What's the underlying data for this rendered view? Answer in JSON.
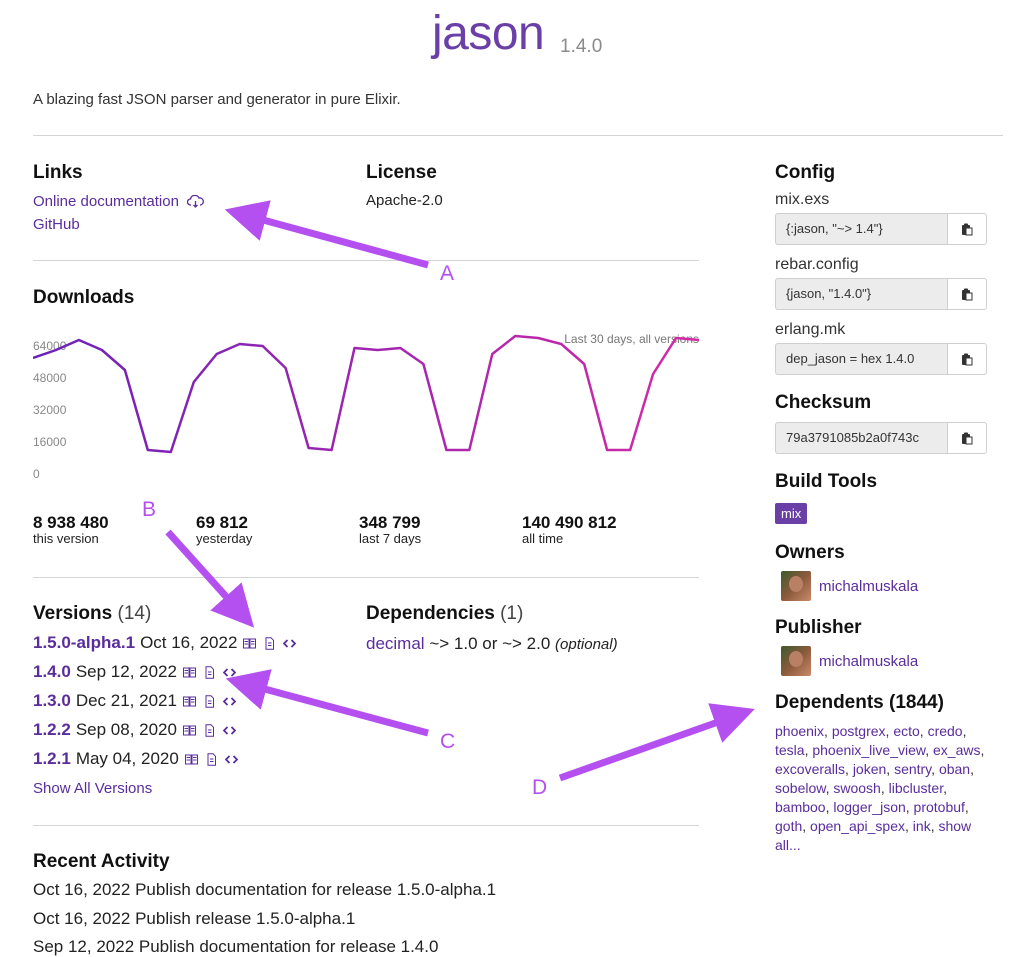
{
  "package": {
    "name": "jason",
    "version": "1.4.0",
    "description": "A blazing fast JSON parser and generator in pure Elixir."
  },
  "links": {
    "title": "Links",
    "items": [
      {
        "label": "Online documentation",
        "icon": "cloud-download-icon"
      },
      {
        "label": "GitHub"
      }
    ]
  },
  "license": {
    "title": "License",
    "value": "Apache-2.0"
  },
  "downloads": {
    "title": "Downloads",
    "chart_caption": "Last 30 days, all versions",
    "stats": [
      {
        "value": "8 938 480",
        "label": "this version"
      },
      {
        "value": "69 812",
        "label": "yesterday"
      },
      {
        "value": "348 799",
        "label": "last 7 days"
      },
      {
        "value": "140 490 812",
        "label": "all time"
      }
    ]
  },
  "chart_data": {
    "type": "line",
    "title": "",
    "caption": "Last 30 days, all versions",
    "xlabel": "",
    "ylabel": "",
    "ylim": [
      0,
      72000
    ],
    "yticks": [
      0,
      16000,
      32000,
      48000,
      64000
    ],
    "grid": false,
    "series": [
      {
        "values": [
          58000,
          62000,
          67000,
          62000,
          52000,
          12000,
          11000,
          46000,
          60000,
          65000,
          64000,
          53000,
          13000,
          12000,
          63000,
          62000,
          63000,
          55000,
          12000,
          12000,
          60000,
          69000,
          68000,
          65000,
          55000,
          12000,
          12000,
          50000,
          68000,
          67000
        ]
      }
    ],
    "colors": [
      "#6a22b8",
      "#d42aa6"
    ]
  },
  "versions": {
    "title": "Versions",
    "count": "(14)",
    "items": [
      {
        "version": "1.5.0-alpha.1",
        "date": "Oct 16, 2022"
      },
      {
        "version": "1.4.0",
        "date": "Sep 12, 2022"
      },
      {
        "version": "1.3.0",
        "date": "Dec 21, 2021"
      },
      {
        "version": "1.2.2",
        "date": "Sep 08, 2020"
      },
      {
        "version": "1.2.1",
        "date": "May 04, 2020"
      }
    ],
    "show_all": "Show All Versions"
  },
  "dependencies": {
    "title": "Dependencies",
    "count": "(1)",
    "items": [
      {
        "name": "decimal",
        "req": "~> 1.0 or ~> 2.0",
        "note": "(optional)"
      }
    ]
  },
  "recent_activity": {
    "title": "Recent Activity",
    "items": [
      "Oct 16, 2022 Publish documentation for release 1.5.0-alpha.1",
      "Oct 16, 2022 Publish release 1.5.0-alpha.1",
      "Sep 12, 2022 Publish documentation for release 1.4.0"
    ]
  },
  "config": {
    "title": "Config",
    "items": [
      {
        "label": "mix.exs",
        "value": "{:jason, \"~> 1.4\"}"
      },
      {
        "label": "rebar.config",
        "value": "{jason, \"1.4.0\"}"
      },
      {
        "label": "erlang.mk",
        "value": "dep_jason = hex 1.4.0"
      }
    ]
  },
  "checksum": {
    "title": "Checksum",
    "value": "79a3791085b2a0f743c"
  },
  "build_tools": {
    "title": "Build Tools",
    "items": [
      "mix"
    ]
  },
  "owners": {
    "title": "Owners",
    "items": [
      "michalmuskala"
    ]
  },
  "publisher": {
    "title": "Publisher",
    "name": "michalmuskala"
  },
  "dependents": {
    "title": "Dependents (1844)",
    "items": [
      "phoenix",
      "postgrex",
      "ecto",
      "credo",
      "tesla",
      "phoenix_live_view",
      "ex_aws",
      "excoveralls",
      "joken",
      "sentry",
      "oban",
      "sobelow",
      "swoosh",
      "libcluster",
      "bamboo",
      "logger_json",
      "protobuf",
      "goth",
      "open_api_spex",
      "ink"
    ],
    "show_all": "show all..."
  },
  "annotations": {
    "color": "#b44ff0",
    "labels": [
      "A",
      "B",
      "C",
      "D"
    ]
  }
}
